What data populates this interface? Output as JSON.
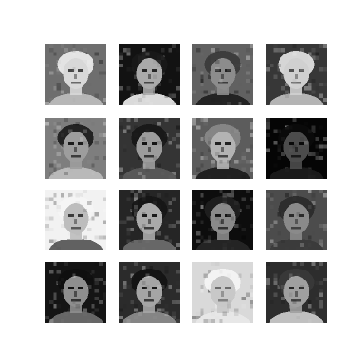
{
  "figure": {
    "background": "#ffffff",
    "grid_rows": 4,
    "grid_cols": 4,
    "cell_type": "grayscale low-resolution face sample"
  },
  "tiles": [
    {
      "row": 0,
      "col": 0,
      "bg": "#6e6e6e",
      "face": "#d8d8d8",
      "hair": "#f0f0f0",
      "shirt": "#bbbbbb",
      "features": "#444444",
      "tone": "light"
    },
    {
      "row": 0,
      "col": 1,
      "bg": "#121212",
      "face": "#aaaaaa",
      "hair": "#1a1a1a",
      "shirt": "#e6e6e6",
      "features": "#262626",
      "tone": "dark"
    },
    {
      "row": 0,
      "col": 2,
      "bg": "#616161",
      "face": "#8c8c8c",
      "hair": "#3a3a3a",
      "shirt": "#202020",
      "features": "#222222",
      "tone": "mid"
    },
    {
      "row": 0,
      "col": 3,
      "bg": "#373737",
      "face": "#d0d0d0",
      "hair": "#e8e8e8",
      "shirt": "#bbbbbb",
      "features": "#505050",
      "tone": "light"
    },
    {
      "row": 1,
      "col": 0,
      "bg": "#7e7e7e",
      "face": "#9d9d9d",
      "hair": "#1a1a1a",
      "shirt": "#bdbdbd",
      "features": "#1c1c1c",
      "tone": "mid"
    },
    {
      "row": 1,
      "col": 1,
      "bg": "#343434",
      "face": "#9c9c9c",
      "hair": "#161616",
      "shirt": "#5a5a5a",
      "features": "#141414",
      "tone": "dark"
    },
    {
      "row": 1,
      "col": 2,
      "bg": "#5c5c5c",
      "face": "#b3b3b3",
      "hair": "#8a8a8a",
      "shirt": "#1e1e1e",
      "features": "#222222",
      "tone": "mid"
    },
    {
      "row": 1,
      "col": 3,
      "bg": "#050505",
      "face": "#4c4c4c",
      "hair": "#0b0b0b",
      "shirt": "#1b1b1b",
      "features": "#0a0a0a",
      "tone": "very-dark"
    },
    {
      "row": 2,
      "col": 0,
      "bg": "#f2f2f2",
      "face": "#bdbdbd",
      "hair": "#f5f5f5",
      "shirt": "#585858",
      "features": "#3a3a3a",
      "tone": "very-light"
    },
    {
      "row": 2,
      "col": 1,
      "bg": "#252525",
      "face": "#aaaaaa",
      "hair": "#151515",
      "shirt": "#6a6a6a",
      "features": "#1a1a1a",
      "tone": "dark"
    },
    {
      "row": 2,
      "col": 2,
      "bg": "#0d0d0d",
      "face": "#8a8a8a",
      "hair": "#202020",
      "shirt": "#262626",
      "features": "#141414",
      "tone": "dark"
    },
    {
      "row": 2,
      "col": 3,
      "bg": "#4c4c4c",
      "face": "#8a8a8a",
      "hair": "#2a2a2a",
      "shirt": "#3a3a3a",
      "features": "#2a2a2a",
      "tone": "mid"
    },
    {
      "row": 3,
      "col": 0,
      "bg": "#141414",
      "face": "#8e8e8e",
      "hair": "#0e0e0e",
      "shirt": "#6a6a6a",
      "features": "#121212",
      "tone": "dark"
    },
    {
      "row": 3,
      "col": 1,
      "bg": "#2b2b2b",
      "face": "#a5a5a5",
      "hair": "#121212",
      "shirt": "#8a8a8a",
      "features": "#1a1a1a",
      "tone": "dark"
    },
    {
      "row": 3,
      "col": 2,
      "bg": "#d9d9d9",
      "face": "#c8c8c8",
      "hair": "#f5f5f5",
      "shirt": "#e8e8e8",
      "features": "#6a6a6a",
      "tone": "very-light"
    },
    {
      "row": 3,
      "col": 3,
      "bg": "#2d2d2d",
      "face": "#a0a0a0",
      "hair": "#3a3a3a",
      "shirt": "#c8c8c8",
      "features": "#262626",
      "tone": "mid"
    }
  ]
}
